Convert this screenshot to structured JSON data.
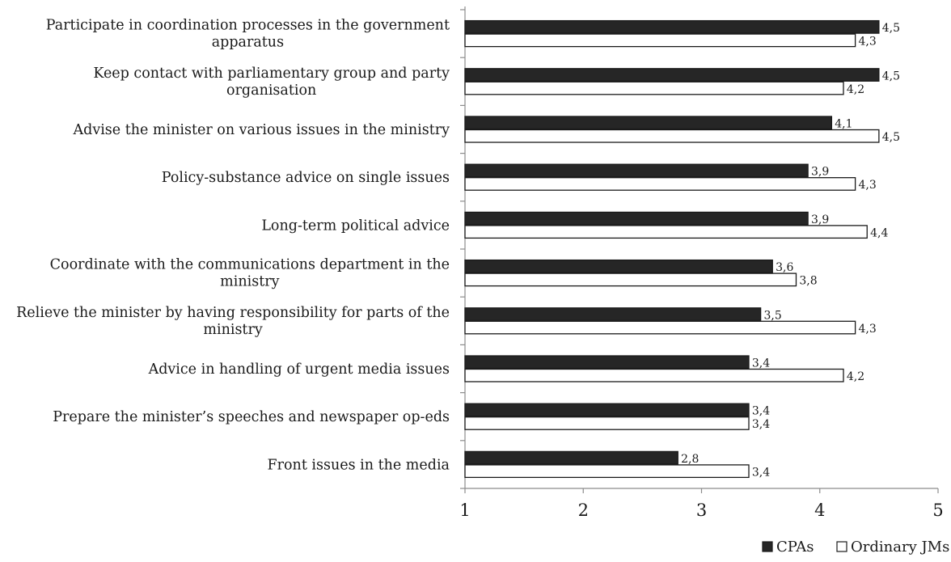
{
  "chart_data": {
    "type": "bar",
    "orientation": "horizontal",
    "categories": [
      [
        "Participate in coordination processes in the government",
        "apparatus"
      ],
      [
        "Keep contact with parliamentary group and party",
        "organisation"
      ],
      [
        "Advise the minister on various issues in the ministry"
      ],
      [
        "Policy-substance advice on single issues"
      ],
      [
        "Long-term political advice"
      ],
      [
        "Coordinate with the communications department in the",
        "ministry"
      ],
      [
        "Relieve the minister by having responsibility for parts of the",
        "ministry"
      ],
      [
        "Advice in handling of urgent media issues"
      ],
      [
        "Prepare the minister’s speeches and newspaper op-eds"
      ],
      [
        "Front issues in the media"
      ]
    ],
    "series": [
      {
        "name": "CPAs",
        "color": "#262626",
        "values": [
          4.5,
          4.5,
          4.1,
          3.9,
          3.9,
          3.6,
          3.5,
          3.4,
          3.4,
          2.8
        ],
        "labels": [
          "4,5",
          "4,5",
          "4,1",
          "3,9",
          "3,9",
          "3,6",
          "3,5",
          "3,4",
          "3,4",
          "2,8"
        ]
      },
      {
        "name": "Ordinary JMs",
        "color": "#ffffff",
        "values": [
          4.3,
          4.2,
          4.5,
          4.3,
          4.4,
          3.8,
          4.3,
          4.2,
          3.4,
          3.4
        ],
        "labels": [
          "4,3",
          "4,2",
          "4,5",
          "4,3",
          "4,4",
          "3,8",
          "4,3",
          "4,2",
          "3,4",
          "3,4"
        ]
      }
    ],
    "xlim": [
      1,
      5
    ],
    "x_ticks": [
      1,
      2,
      3,
      4,
      5
    ],
    "x_tick_labels": [
      "1",
      "2",
      "3",
      "4",
      "5"
    ],
    "grid": false,
    "legend_position": "bottom-right"
  }
}
